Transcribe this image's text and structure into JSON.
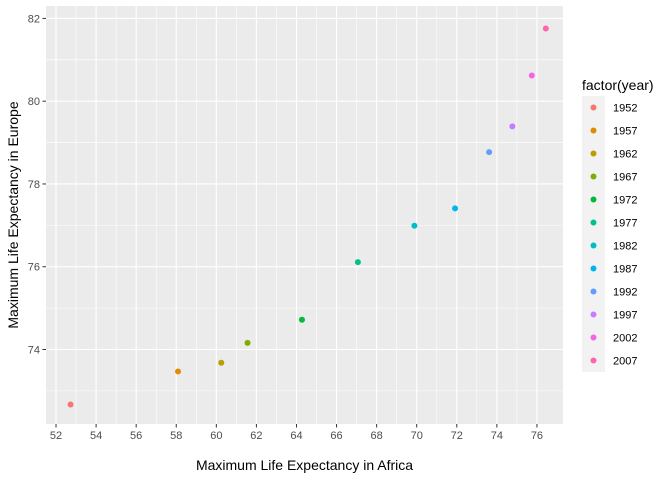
{
  "chart_data": {
    "type": "scatter",
    "xlabel": "Maximum Life Expectancy in Africa",
    "ylabel": "Maximum Life Expectancy in Europe",
    "xlim": [
      51.5,
      77.3
    ],
    "ylim": [
      72.2,
      82.3
    ],
    "x_ticks": [
      52,
      54,
      56,
      58,
      60,
      62,
      64,
      66,
      68,
      70,
      72,
      74,
      76
    ],
    "y_ticks": [
      74,
      76,
      78,
      80,
      82
    ],
    "grid": true,
    "legend": {
      "title": "factor(year)",
      "placement": "right"
    },
    "series": [
      {
        "name": "1952",
        "color": "#F8766D",
        "x": 52.724,
        "y": 72.67
      },
      {
        "name": "1957",
        "color": "#DE8C00",
        "x": 58.089,
        "y": 73.47
      },
      {
        "name": "1962",
        "color": "#B79F00",
        "x": 60.246,
        "y": 73.68
      },
      {
        "name": "1967",
        "color": "#7CAE00",
        "x": 61.557,
        "y": 74.16
      },
      {
        "name": "1972",
        "color": "#00BA38",
        "x": 64.274,
        "y": 74.72
      },
      {
        "name": "1977",
        "color": "#00C08B",
        "x": 67.064,
        "y": 76.11
      },
      {
        "name": "1982",
        "color": "#00BFC4",
        "x": 69.885,
        "y": 76.99
      },
      {
        "name": "1987",
        "color": "#00B4F0",
        "x": 71.913,
        "y": 77.41
      },
      {
        "name": "1992",
        "color": "#619CFF",
        "x": 73.615,
        "y": 78.77
      },
      {
        "name": "1997",
        "color": "#C77CFF",
        "x": 74.772,
        "y": 79.39
      },
      {
        "name": "2002",
        "color": "#F564E3",
        "x": 75.744,
        "y": 80.62
      },
      {
        "name": "2007",
        "color": "#FF64B0",
        "x": 76.442,
        "y": 81.757
      }
    ]
  }
}
